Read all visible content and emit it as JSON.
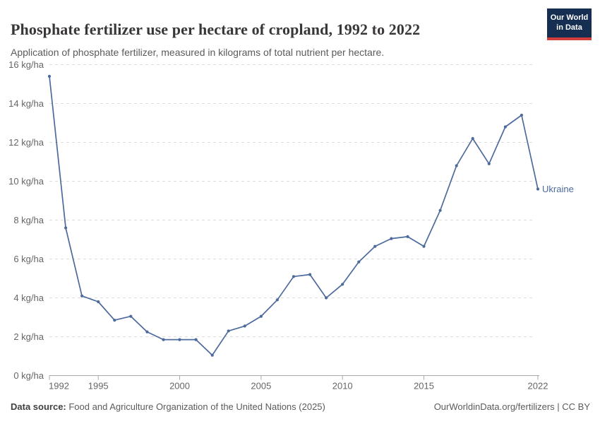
{
  "header": {
    "title": "Phosphate fertilizer use per hectare of cropland, 1992 to 2022",
    "subtitle": "Application of phosphate fertilizer, measured in kilograms of total nutrient per hectare.",
    "logo": {
      "line1": "Our World",
      "line2": "in Data"
    }
  },
  "chart_data": {
    "type": "line",
    "title": "Phosphate fertilizer use per hectare of cropland, 1992 to 2022",
    "x": [
      1992,
      1993,
      1994,
      1995,
      1996,
      1997,
      1998,
      1999,
      2000,
      2001,
      2002,
      2003,
      2004,
      2005,
      2006,
      2007,
      2008,
      2009,
      2010,
      2011,
      2012,
      2013,
      2014,
      2015,
      2016,
      2017,
      2018,
      2019,
      2020,
      2021,
      2022
    ],
    "series": [
      {
        "name": "Ukraine",
        "color": "#4C6A9C",
        "values": [
          15.4,
          7.6,
          4.1,
          3.8,
          2.85,
          3.05,
          2.25,
          1.85,
          1.85,
          1.85,
          1.05,
          2.3,
          2.55,
          3.05,
          3.9,
          5.1,
          5.2,
          4.0,
          4.7,
          5.85,
          6.65,
          7.05,
          7.15,
          6.65,
          8.5,
          10.8,
          12.2,
          10.9,
          12.8,
          13.4,
          9.6
        ]
      }
    ],
    "xlim": [
      1992,
      2022
    ],
    "ylim": [
      0,
      16
    ],
    "x_ticks": [
      1992,
      1995,
      2000,
      2005,
      2010,
      2015,
      2022
    ],
    "y_ticks": [
      0,
      2,
      4,
      6,
      8,
      10,
      12,
      14,
      16
    ],
    "y_tick_suffix": " kg/ha",
    "grid": "horizontal-dashed",
    "legend_position": "end-of-line-label",
    "end_label": "Ukraine"
  },
  "footer": {
    "datasource_label": "Data source:",
    "datasource_text": " Food and Agriculture Organization of the United Nations (2025)",
    "right_text": "OurWorldinData.org/fertilizers | CC BY"
  },
  "colors": {
    "line": "#4C6A9C",
    "grid": "#dcdcdc",
    "axis": "#a8a8a8",
    "tick_text": "#666666",
    "title_text": "#383636",
    "subtitle_text": "#5b5b5b",
    "logo_bg": "#152e52",
    "logo_accent": "#d13d39"
  }
}
